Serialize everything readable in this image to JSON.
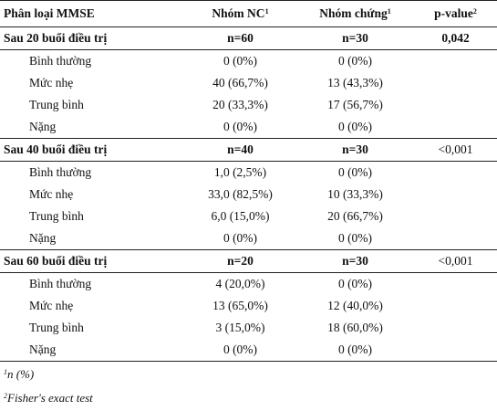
{
  "header": {
    "col1": "Phân loại MMSE",
    "col2": "Nhóm NC",
    "col2_sup": "1",
    "col3": "Nhóm chứng",
    "col3_sup": "1",
    "col4": "p-value",
    "col4_sup": "2"
  },
  "groups": [
    {
      "label": "Sau 20 buổi điều trị",
      "nc": "n=60",
      "ctrl": "n=30",
      "p": "0,042",
      "rows": [
        {
          "label": "Bình thường",
          "nc": "0 (0%)",
          "ctrl": "0 (0%)"
        },
        {
          "label": "Mức nhẹ",
          "nc": "40 (66,7%)",
          "ctrl": "13 (43,3%)"
        },
        {
          "label": "Trung bình",
          "nc": "20 (33,3%)",
          "ctrl": "17 (56,7%)"
        },
        {
          "label": "Nặng",
          "nc": "0 (0%)",
          "ctrl": "0 (0%)"
        }
      ]
    },
    {
      "label": "Sau 40 buổi điều trị",
      "nc": "n=40",
      "ctrl": "n=30",
      "p": "<0,001",
      "rows": [
        {
          "label": "Bình thường",
          "nc": "1,0 (2,5%)",
          "ctrl": "0 (0%)"
        },
        {
          "label": "Mức nhẹ",
          "nc": "33,0 (82,5%)",
          "ctrl": "10 (33,3%)"
        },
        {
          "label": "Trung bình",
          "nc": "6,0 (15,0%)",
          "ctrl": "20 (66,7%)"
        },
        {
          "label": "Nặng",
          "nc": "0 (0%)",
          "ctrl": "0 (0%)"
        }
      ]
    },
    {
      "label": "Sau 60 buổi điều trị",
      "nc": "n=20",
      "ctrl": "n=30",
      "p": "<0,001",
      "rows": [
        {
          "label": "Bình thường",
          "nc": "4 (20,0%)",
          "ctrl": "0 (0%)"
        },
        {
          "label": "Mức nhẹ",
          "nc": "13 (65,0%)",
          "ctrl": "12 (40,0%)"
        },
        {
          "label": "Trung bình",
          "nc": "3 (15,0%)",
          "ctrl": "18 (60,0%)"
        },
        {
          "label": "Nặng",
          "nc": "0 (0%)",
          "ctrl": "0 (0%)"
        }
      ]
    }
  ],
  "footnotes": [
    {
      "sup": "1",
      "text": "n (%)"
    },
    {
      "sup": "2",
      "text": "Fisher's exact test"
    }
  ]
}
